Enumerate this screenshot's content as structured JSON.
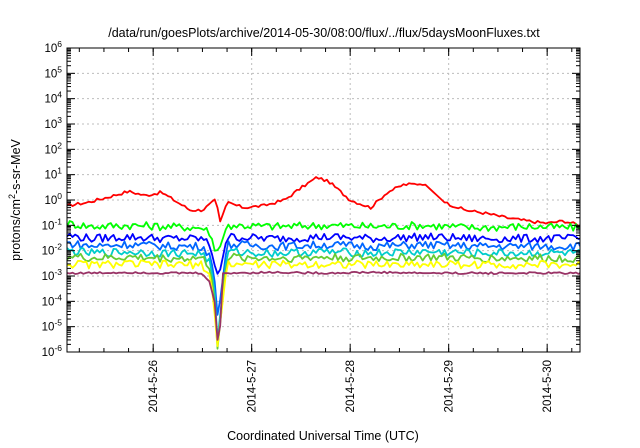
{
  "chart_data": {
    "type": "line",
    "title": "/data/run/goesPlots/archive/2014-05-30/08:00/flux/../flux/5daysMoonFluxes.txt",
    "xlabel": "Coordinated Universal Time (UTC)",
    "ylabel": {
      "prefix": "protons/cm",
      "sup": "2",
      "suffix": "-s-sr-MeV"
    },
    "yscale": "log",
    "ylim": [
      1e-06,
      1000000.0
    ],
    "xlim": [
      "2014-05-25 03:00",
      "2014-05-30 08:00"
    ],
    "grid": "dashed",
    "y_ticks": [
      {
        "base": "10",
        "exp": "-6"
      },
      {
        "base": "10",
        "exp": "-5"
      },
      {
        "base": "10",
        "exp": "-4"
      },
      {
        "base": "10",
        "exp": "-3"
      },
      {
        "base": "10",
        "exp": "-2"
      },
      {
        "base": "10",
        "exp": "-1"
      },
      {
        "base": "10",
        "exp": "0"
      },
      {
        "base": "10",
        "exp": "1"
      },
      {
        "base": "10",
        "exp": "2"
      },
      {
        "base": "10",
        "exp": "3"
      },
      {
        "base": "10",
        "exp": "4"
      },
      {
        "base": "10",
        "exp": "5"
      },
      {
        "base": "10",
        "exp": "6"
      }
    ],
    "x_ticks": [
      "2014-5-26",
      "2014-5-27",
      "2014-5-28",
      "2014-5-29",
      "2014-5-30"
    ],
    "series": [
      {
        "color": "#ff0000",
        "x": [
          "2014-05-25 03:00",
          "2014-05-25 08:00",
          "2014-05-25 13:00",
          "2014-05-25 18:00",
          "2014-05-25 22:00",
          "2014-05-26 02:00",
          "2014-05-26 06:00",
          "2014-05-26 09:00",
          "2014-05-26 12:00",
          "2014-05-26 14:00",
          "2014-05-26 15:30",
          "2014-05-26 16:00",
          "2014-05-26 18:00",
          "2014-05-26 22:00",
          "2014-05-27 03:00",
          "2014-05-27 08:00",
          "2014-05-27 12:00",
          "2014-05-27 16:00",
          "2014-05-27 19:00",
          "2014-05-28 00:00",
          "2014-05-28 05:00",
          "2014-05-28 09:00",
          "2014-05-28 13:00",
          "2014-05-28 18:00",
          "2014-05-28 23:00",
          "2014-05-29 04:00",
          "2014-05-29 09:00",
          "2014-05-29 14:00",
          "2014-05-29 19:00",
          "2014-05-30 00:00",
          "2014-05-30 04:00",
          "2014-05-30 08:00"
        ],
        "y": [
          0.6,
          0.8,
          1.3,
          2.2,
          1.5,
          2.0,
          0.8,
          0.4,
          0.4,
          0.7,
          1.1,
          0.1,
          0.8,
          0.5,
          0.6,
          1.0,
          3.0,
          8.0,
          5.0,
          1.0,
          0.5,
          2.0,
          4.0,
          4.5,
          0.8,
          0.4,
          0.3,
          0.2,
          0.15,
          0.12,
          0.15,
          0.1
        ]
      },
      {
        "color": "#00ff00",
        "x": [
          "2014-05-25 03:00",
          "2014-05-25 09:00",
          "2014-05-25 18:00",
          "2014-05-26 03:00",
          "2014-05-26 12:00",
          "2014-05-26 14:00",
          "2014-05-26 15:00",
          "2014-05-26 16:00",
          "2014-05-26 18:00",
          "2014-05-27 06:00",
          "2014-05-27 18:00",
          "2014-05-28 06:00",
          "2014-05-28 18:00",
          "2014-05-29 06:00",
          "2014-05-29 18:00",
          "2014-05-30 08:00"
        ],
        "y": [
          0.12,
          0.09,
          0.1,
          0.09,
          0.08,
          0.05,
          0.01,
          0.01,
          0.1,
          0.09,
          0.1,
          0.09,
          0.1,
          0.08,
          0.09,
          0.08
        ]
      },
      {
        "color": "#0000ff",
        "x": [
          "2014-05-25 03:00",
          "2014-05-25 09:00",
          "2014-05-25 18:00",
          "2014-05-26 03:00",
          "2014-05-26 12:00",
          "2014-05-26 14:00",
          "2014-05-26 15:00",
          "2014-05-26 16:00",
          "2014-05-26 18:00",
          "2014-05-27 06:00",
          "2014-05-27 18:00",
          "2014-05-28 06:00",
          "2014-05-28 18:00",
          "2014-05-29 06:00",
          "2014-05-29 18:00",
          "2014-05-30 08:00"
        ],
        "y": [
          0.04,
          0.03,
          0.035,
          0.03,
          0.03,
          0.015,
          0.003,
          0.001,
          0.035,
          0.03,
          0.035,
          0.03,
          0.035,
          0.03,
          0.03,
          0.03
        ]
      },
      {
        "color": "#0066ff",
        "x": [
          "2014-05-25 03:00",
          "2014-05-25 09:00",
          "2014-05-25 18:00",
          "2014-05-26 03:00",
          "2014-05-26 12:00",
          "2014-05-26 14:00",
          "2014-05-26 15:00",
          "2014-05-26 15:45",
          "2014-05-26 18:00",
          "2014-05-27 06:00",
          "2014-05-27 18:00",
          "2014-05-28 06:00",
          "2014-05-28 18:00",
          "2014-05-29 06:00",
          "2014-05-29 18:00",
          "2014-05-30 08:00"
        ],
        "y": [
          0.02,
          0.015,
          0.018,
          0.015,
          0.015,
          0.006,
          0.0006,
          2e-05,
          0.018,
          0.015,
          0.017,
          0.015,
          0.017,
          0.015,
          0.015,
          0.015
        ]
      },
      {
        "color": "#00cccc",
        "x": [
          "2014-05-25 03:00",
          "2014-05-25 09:00",
          "2014-05-25 18:00",
          "2014-05-26 03:00",
          "2014-05-26 12:00",
          "2014-05-26 14:00",
          "2014-05-26 15:00",
          "2014-05-26 15:40",
          "2014-05-26 18:00",
          "2014-05-27 06:00",
          "2014-05-27 18:00",
          "2014-05-28 06:00",
          "2014-05-28 18:00",
          "2014-05-29 06:00",
          "2014-05-29 18:00",
          "2014-05-30 08:00"
        ],
        "y": [
          0.01,
          0.008,
          0.009,
          0.008,
          0.008,
          0.003,
          0.0002,
          3e-06,
          0.009,
          0.008,
          0.009,
          0.008,
          0.009,
          0.008,
          0.008,
          0.008
        ]
      },
      {
        "color": "#66cc33",
        "x": [
          "2014-05-25 03:00",
          "2014-05-25 09:00",
          "2014-05-25 18:00",
          "2014-05-26 03:00",
          "2014-05-26 12:00",
          "2014-05-26 14:00",
          "2014-05-26 15:00",
          "2014-05-26 15:35",
          "2014-05-26 18:00",
          "2014-05-27 06:00",
          "2014-05-27 18:00",
          "2014-05-28 06:00",
          "2014-05-28 18:00",
          "2014-05-29 06:00",
          "2014-05-29 18:00",
          "2014-05-30 08:00"
        ],
        "y": [
          0.006,
          0.005,
          0.0055,
          0.005,
          0.005,
          0.002,
          8e-05,
          1e-06,
          0.0055,
          0.005,
          0.0055,
          0.005,
          0.0055,
          0.005,
          0.005,
          0.005
        ]
      },
      {
        "color": "#ffff00",
        "x": [
          "2014-05-25 03:00",
          "2014-05-25 09:00",
          "2014-05-25 18:00",
          "2014-05-26 03:00",
          "2014-05-26 12:00",
          "2014-05-26 14:00",
          "2014-05-26 15:00",
          "2014-05-26 15:30",
          "2014-05-26 18:00",
          "2014-05-27 06:00",
          "2014-05-27 18:00",
          "2014-05-28 06:00",
          "2014-05-28 18:00",
          "2014-05-29 06:00",
          "2014-05-29 18:00",
          "2014-05-30 08:00"
        ],
        "y": [
          0.003,
          0.0028,
          0.003,
          0.0028,
          0.0028,
          0.001,
          3e-05,
          1e-06,
          0.003,
          0.0028,
          0.003,
          0.0028,
          0.003,
          0.0028,
          0.0028,
          0.0028
        ]
      },
      {
        "color": "#993366",
        "x": [
          "2014-05-25 03:00",
          "2014-05-25 09:00",
          "2014-05-25 18:00",
          "2014-05-26 03:00",
          "2014-05-26 12:00",
          "2014-05-26 13:00",
          "2014-05-26 14:00",
          "2014-05-26 14:40",
          "2014-05-26 15:20",
          "2014-05-26 15:40",
          "2014-05-26 16:00",
          "2014-05-26 17:00",
          "2014-05-27 06:00",
          "2014-05-27 18:00",
          "2014-05-28 06:00",
          "2014-05-28 18:00",
          "2014-05-29 06:00",
          "2014-05-29 18:00",
          "2014-05-30 08:00"
        ],
        "y": [
          0.0013,
          0.0013,
          0.0014,
          0.0013,
          0.0013,
          0.0008,
          0.0005,
          0.00012,
          6e-05,
          3e-06,
          1e-06,
          0.0013,
          0.0014,
          0.0013,
          0.0014,
          0.0013,
          0.0013,
          0.0013,
          0.0013
        ]
      }
    ]
  }
}
